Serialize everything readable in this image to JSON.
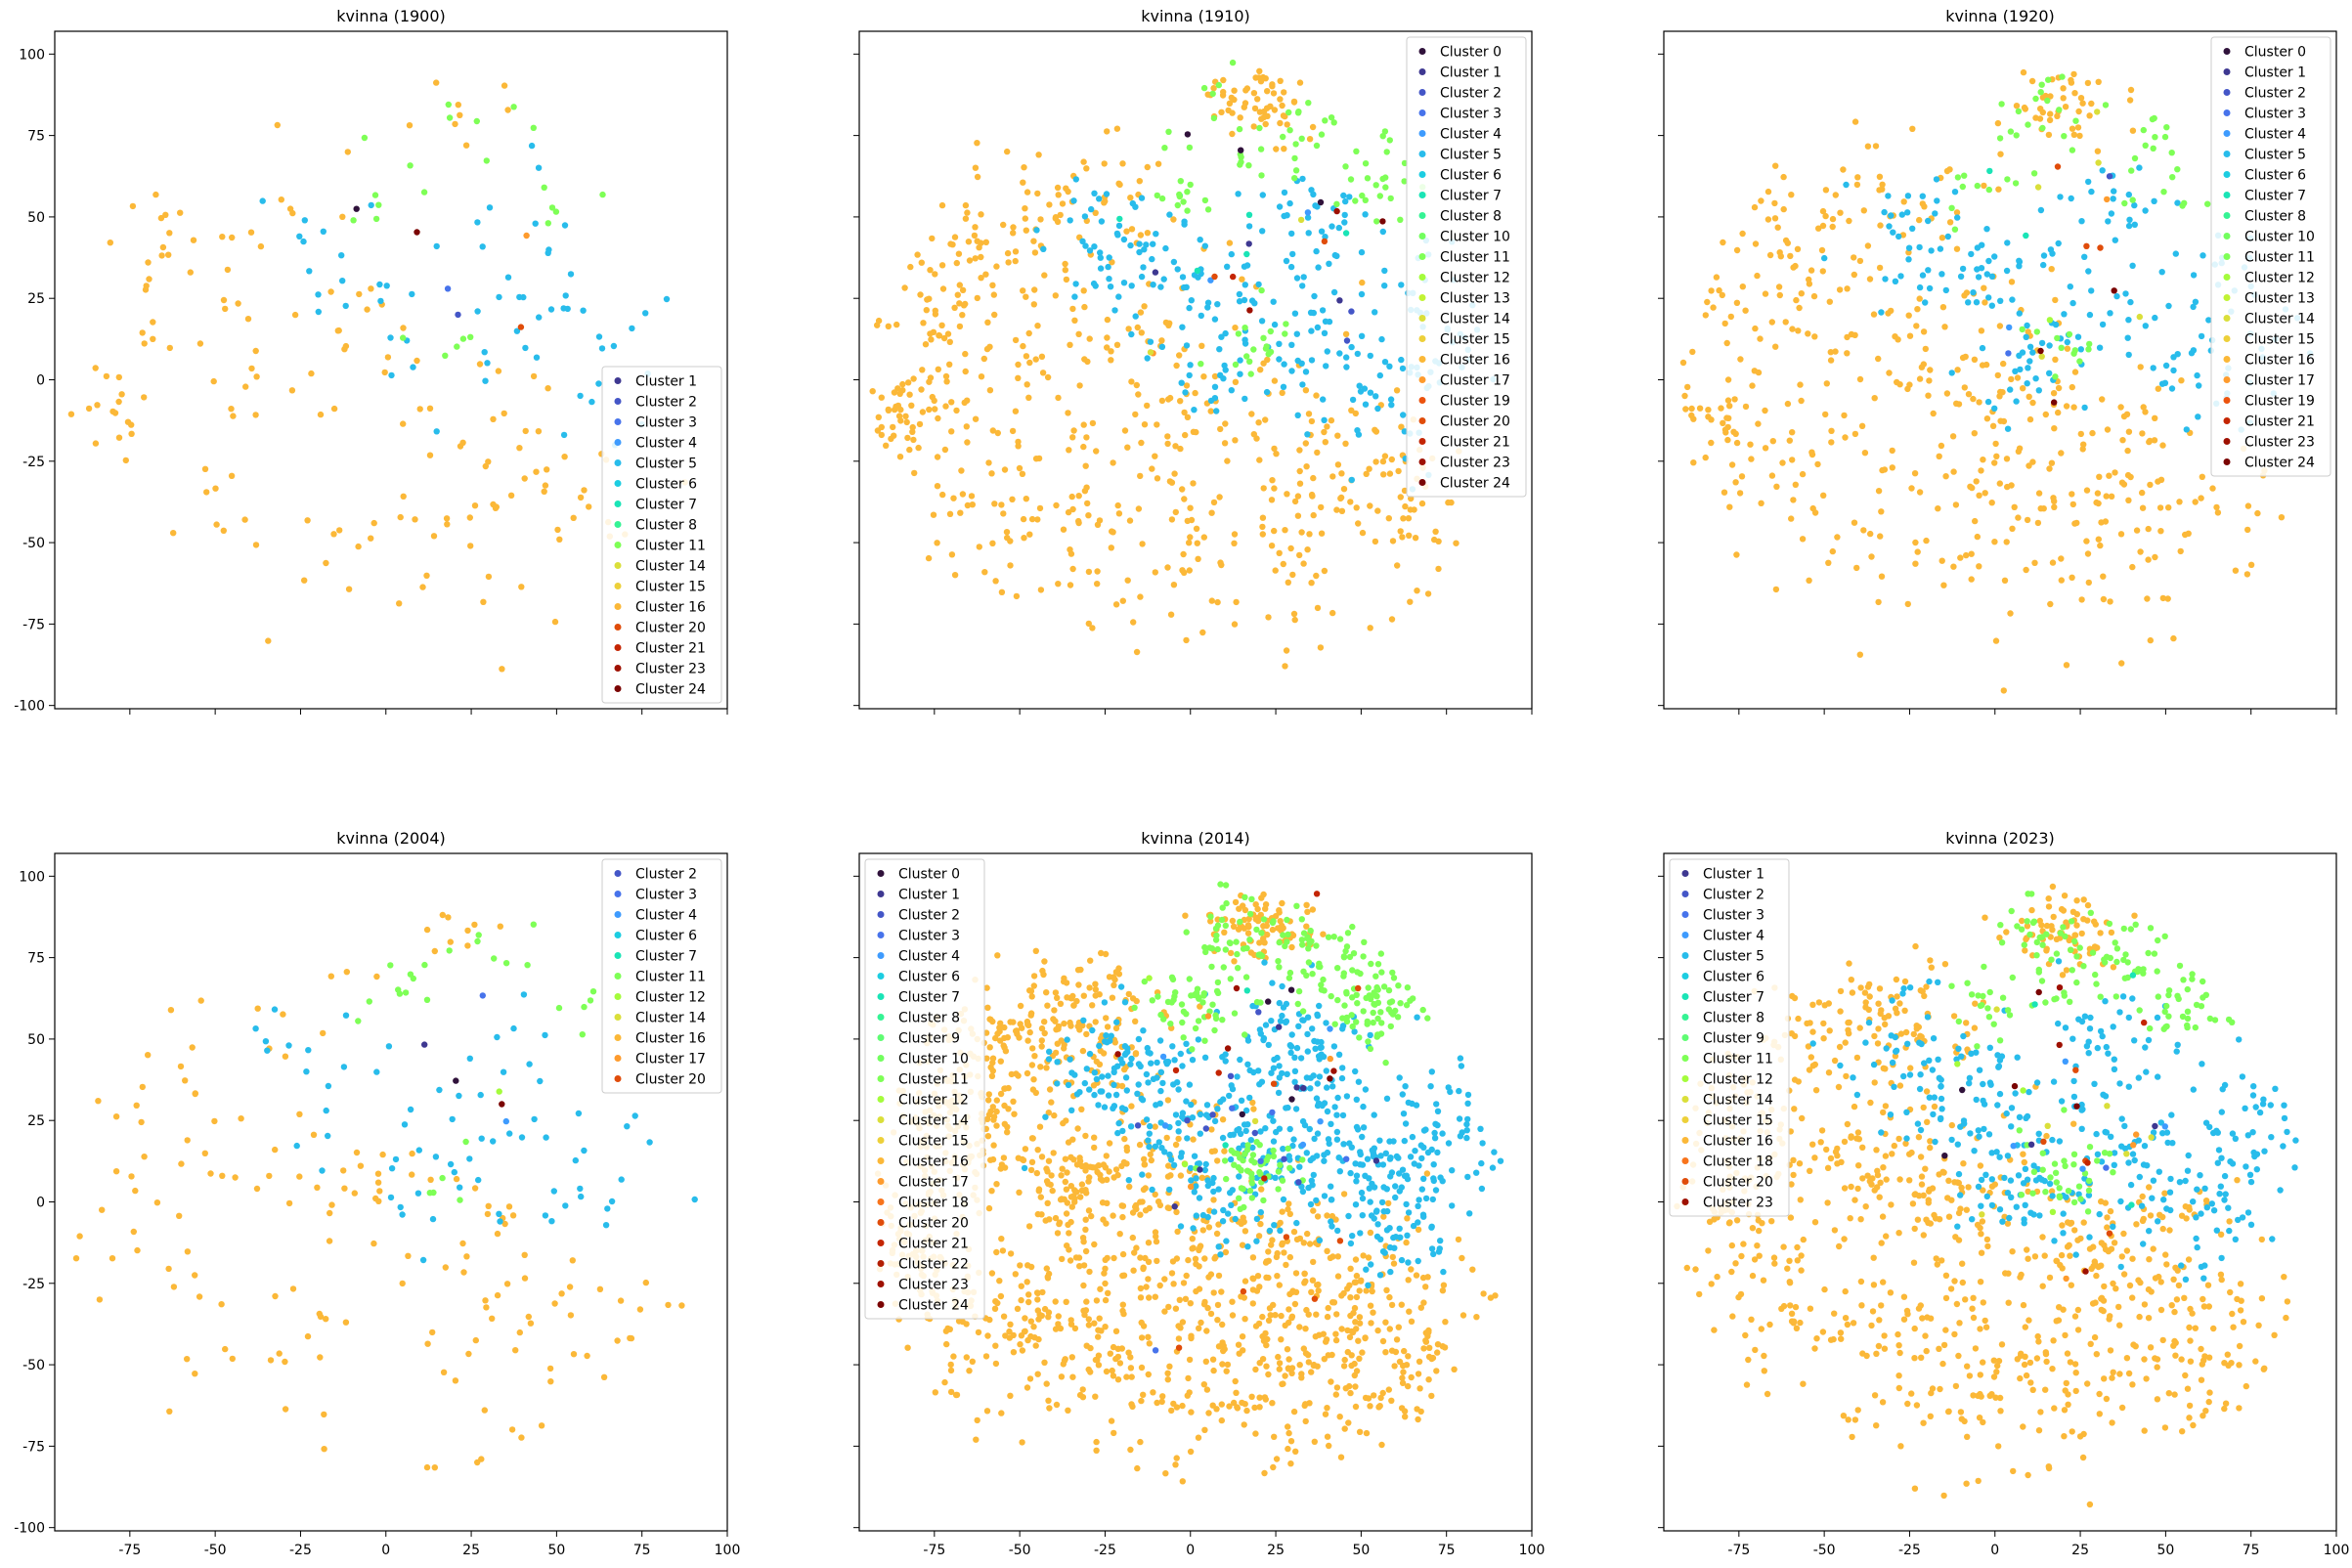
{
  "figure": {
    "layout": "2 rows x 3 columns, shared x and y axes",
    "background": "#ffffff"
  },
  "chart_data": [
    {
      "type": "scatter",
      "title": "kvinna (1900)",
      "xlim": [
        -97,
        100
      ],
      "ylim": [
        -101,
        107
      ],
      "xticks": [
        -75,
        -50,
        -25,
        0,
        25,
        50,
        75,
        100
      ],
      "yticks": [
        -100,
        -75,
        -50,
        -25,
        0,
        25,
        50,
        75,
        100
      ],
      "show_xtick_labels": false,
      "show_ytick_labels": true,
      "legend_position": "lower right",
      "legend": [
        "Cluster 1",
        "Cluster 2",
        "Cluster 3",
        "Cluster 4",
        "Cluster 5",
        "Cluster 6",
        "Cluster 7",
        "Cluster 8",
        "Cluster 11",
        "Cluster 14",
        "Cluster 15",
        "Cluster 16",
        "Cluster 20",
        "Cluster 21",
        "Cluster 23",
        "Cluster 24"
      ],
      "density": 1,
      "seed": 1900
    },
    {
      "type": "scatter",
      "title": "kvinna (1910)",
      "xlim": [
        -97,
        100
      ],
      "ylim": [
        -101,
        107
      ],
      "xticks": [
        -75,
        -50,
        -25,
        0,
        25,
        50,
        75,
        100
      ],
      "yticks": [
        -100,
        -75,
        -50,
        -25,
        0,
        25,
        50,
        75,
        100
      ],
      "show_xtick_labels": false,
      "show_ytick_labels": false,
      "legend_position": "upper right",
      "legend": [
        "Cluster 0",
        "Cluster 1",
        "Cluster 2",
        "Cluster 3",
        "Cluster 4",
        "Cluster 5",
        "Cluster 6",
        "Cluster 7",
        "Cluster 8",
        "Cluster 10",
        "Cluster 11",
        "Cluster 12",
        "Cluster 13",
        "Cluster 14",
        "Cluster 15",
        "Cluster 16",
        "Cluster 17",
        "Cluster 19",
        "Cluster 20",
        "Cluster 21",
        "Cluster 23",
        "Cluster 24"
      ],
      "density": 4,
      "seed": 1910
    },
    {
      "type": "scatter",
      "title": "kvinna (1920)",
      "xlim": [
        -97,
        100
      ],
      "ylim": [
        -101,
        107
      ],
      "xticks": [
        -75,
        -50,
        -25,
        0,
        25,
        50,
        75,
        100
      ],
      "yticks": [
        -100,
        -75,
        -50,
        -25,
        0,
        25,
        50,
        75,
        100
      ],
      "show_xtick_labels": false,
      "show_ytick_labels": false,
      "legend_position": "upper right",
      "legend": [
        "Cluster 0",
        "Cluster 1",
        "Cluster 2",
        "Cluster 3",
        "Cluster 4",
        "Cluster 5",
        "Cluster 6",
        "Cluster 7",
        "Cluster 8",
        "Cluster 10",
        "Cluster 11",
        "Cluster 12",
        "Cluster 13",
        "Cluster 14",
        "Cluster 15",
        "Cluster 16",
        "Cluster 17",
        "Cluster 19",
        "Cluster 21",
        "Cluster 23",
        "Cluster 24"
      ],
      "density": 3,
      "seed": 1920
    },
    {
      "type": "scatter",
      "title": "kvinna (2004)",
      "xlim": [
        -97,
        100
      ],
      "ylim": [
        -101,
        107
      ],
      "xticks": [
        -75,
        -50,
        -25,
        0,
        25,
        50,
        75,
        100
      ],
      "yticks": [
        -100,
        -75,
        -50,
        -25,
        0,
        25,
        50,
        75,
        100
      ],
      "show_xtick_labels": true,
      "show_ytick_labels": true,
      "legend_position": "upper right",
      "legend": [
        "Cluster 2",
        "Cluster 3",
        "Cluster 4",
        "Cluster 6",
        "Cluster 7",
        "Cluster 11",
        "Cluster 12",
        "Cluster 14",
        "Cluster 16",
        "Cluster 17",
        "Cluster 20"
      ],
      "density": 1,
      "seed": 2004
    },
    {
      "type": "scatter",
      "title": "kvinna (2014)",
      "xlim": [
        -97,
        100
      ],
      "ylim": [
        -101,
        107
      ],
      "xticks": [
        -75,
        -50,
        -25,
        0,
        25,
        50,
        75,
        100
      ],
      "yticks": [
        -100,
        -75,
        -50,
        -25,
        0,
        25,
        50,
        75,
        100
      ],
      "show_xtick_labels": true,
      "show_ytick_labels": false,
      "legend_position": "upper left",
      "legend": [
        "Cluster 0",
        "Cluster 1",
        "Cluster 2",
        "Cluster 3",
        "Cluster 4",
        "Cluster 6",
        "Cluster 7",
        "Cluster 8",
        "Cluster 9",
        "Cluster 10",
        "Cluster 11",
        "Cluster 12",
        "Cluster 14",
        "Cluster 15",
        "Cluster 16",
        "Cluster 17",
        "Cluster 18",
        "Cluster 20",
        "Cluster 21",
        "Cluster 22",
        "Cluster 23",
        "Cluster 24"
      ],
      "density": 9,
      "seed": 2014
    },
    {
      "type": "scatter",
      "title": "kvinna (2023)",
      "xlim": [
        -97,
        100
      ],
      "ylim": [
        -101,
        107
      ],
      "xticks": [
        -75,
        -50,
        -25,
        0,
        25,
        50,
        75,
        100
      ],
      "yticks": [
        -100,
        -75,
        -50,
        -25,
        0,
        25,
        50,
        75,
        100
      ],
      "show_xtick_labels": true,
      "show_ytick_labels": false,
      "legend_position": "upper left",
      "legend": [
        "Cluster 1",
        "Cluster 2",
        "Cluster 3",
        "Cluster 4",
        "Cluster 5",
        "Cluster 6",
        "Cluster 7",
        "Cluster 8",
        "Cluster 9",
        "Cluster 11",
        "Cluster 12",
        "Cluster 14",
        "Cluster 15",
        "Cluster 16",
        "Cluster 18",
        "Cluster 20",
        "Cluster 23"
      ],
      "density": 6,
      "seed": 2023
    }
  ],
  "cluster_colors": {
    "0": "#30123b",
    "1": "#3e3891",
    "2": "#4456c7",
    "3": "#4773eb",
    "4": "#3e9bfe",
    "5": "#28bceb",
    "6": "#1ccde1",
    "7": "#1ae4b6",
    "8": "#35f394",
    "9": "#5ffc73",
    "10": "#72fe5e",
    "11": "#7eff56",
    "12": "#a4fc3c",
    "13": "#c1f334",
    "14": "#dadf3a",
    "15": "#edd03a",
    "16": "#fbb838",
    "17": "#fe9b2d",
    "18": "#f8741c",
    "19": "#ec530e",
    "20": "#e04c0a",
    "21": "#c42503",
    "22": "#b31e02",
    "23": "#9e1001",
    "24": "#7a0403"
  },
  "main_colors": {
    "orange": "#fbb838",
    "blue": "#28bceb",
    "green": "#7eff56"
  }
}
